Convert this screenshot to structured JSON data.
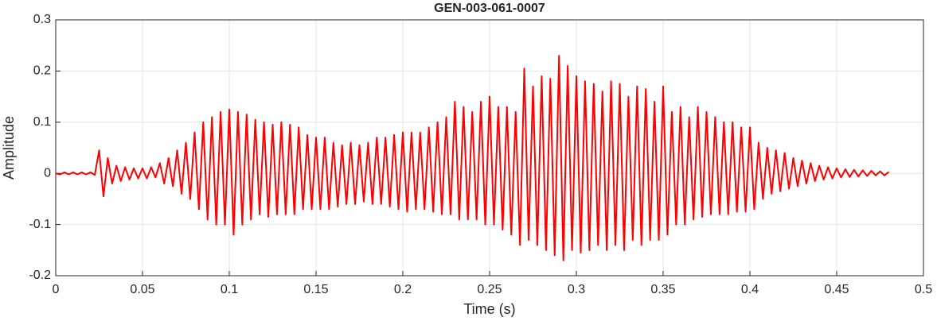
{
  "chart_data": {
    "type": "line",
    "title": "GEN-003-061-0007",
    "xlabel": "Time (s)",
    "ylabel": "Amplitude",
    "color": "#ff0000",
    "grid": true,
    "xlim": [
      0,
      0.5
    ],
    "ylim": [
      -0.2,
      0.3
    ],
    "xticks": [
      0,
      0.05,
      0.1,
      0.15,
      0.2,
      0.25,
      0.3,
      0.35,
      0.4,
      0.45,
      0.5
    ],
    "yticks": [
      -0.2,
      -0.1,
      0,
      0.1,
      0.2,
      0.3
    ],
    "x": [
      0,
      0.0025,
      0.005,
      0.0075,
      0.01,
      0.0125,
      0.015,
      0.0175,
      0.02,
      0.0225,
      0.025,
      0.0275,
      0.03,
      0.0325,
      0.035,
      0.0375,
      0.04,
      0.0425,
      0.045,
      0.0475,
      0.05,
      0.0525,
      0.055,
      0.0575,
      0.06,
      0.0625,
      0.065,
      0.0675,
      0.07,
      0.0725,
      0.075,
      0.0775,
      0.08,
      0.0825,
      0.085,
      0.0875,
      0.09,
      0.0925,
      0.095,
      0.0975,
      0.1,
      0.1025,
      0.105,
      0.1075,
      0.11,
      0.1125,
      0.115,
      0.1175,
      0.12,
      0.1225,
      0.125,
      0.1275,
      0.13,
      0.1325,
      0.135,
      0.1375,
      0.14,
      0.1425,
      0.145,
      0.1475,
      0.15,
      0.1525,
      0.155,
      0.1575,
      0.16,
      0.1625,
      0.165,
      0.1675,
      0.17,
      0.1725,
      0.175,
      0.1775,
      0.18,
      0.1825,
      0.185,
      0.1875,
      0.19,
      0.1925,
      0.195,
      0.1975,
      0.2,
      0.2025,
      0.205,
      0.2075,
      0.21,
      0.2125,
      0.215,
      0.2175,
      0.22,
      0.2225,
      0.225,
      0.2275,
      0.23,
      0.2325,
      0.235,
      0.2375,
      0.24,
      0.2425,
      0.245,
      0.2475,
      0.25,
      0.2525,
      0.255,
      0.2575,
      0.26,
      0.2625,
      0.265,
      0.2675,
      0.27,
      0.2725,
      0.275,
      0.2775,
      0.28,
      0.2825,
      0.285,
      0.2875,
      0.29,
      0.2925,
      0.295,
      0.2975,
      0.3,
      0.3025,
      0.305,
      0.3075,
      0.31,
      0.3125,
      0.315,
      0.3175,
      0.32,
      0.3225,
      0.325,
      0.3275,
      0.33,
      0.3325,
      0.335,
      0.3375,
      0.34,
      0.3425,
      0.345,
      0.3475,
      0.35,
      0.3525,
      0.355,
      0.3575,
      0.36,
      0.3625,
      0.365,
      0.3675,
      0.37,
      0.3725,
      0.375,
      0.3775,
      0.38,
      0.3825,
      0.385,
      0.3875,
      0.39,
      0.3925,
      0.395,
      0.3975,
      0.4,
      0.4025,
      0.405,
      0.4075,
      0.41,
      0.4125,
      0.415,
      0.4175,
      0.42,
      0.4225,
      0.425,
      0.4275,
      0.43,
      0.4325,
      0.435,
      0.4375,
      0.44,
      0.4425,
      0.445,
      0.4475,
      0.45,
      0.4525,
      0.455,
      0.4575,
      0.46,
      0.4625,
      0.465,
      0.4675,
      0.47,
      0.4725,
      0.475,
      0.4775,
      0.48
    ],
    "values": [
      0,
      -0.002,
      0.002,
      -0.002,
      0.002,
      -0.002,
      0.002,
      -0.002,
      0.002,
      -0.003,
      0.045,
      -0.045,
      0.03,
      -0.02,
      0.015,
      -0.015,
      0.012,
      -0.012,
      0.01,
      -0.01,
      0.01,
      -0.01,
      0.012,
      -0.008,
      0.02,
      -0.02,
      0.03,
      -0.025,
      0.045,
      -0.04,
      0.06,
      -0.05,
      0.08,
      -0.07,
      0.1,
      -0.09,
      0.11,
      -0.1,
      0.12,
      -0.1,
      0.125,
      -0.12,
      0.12,
      -0.1,
      0.115,
      -0.09,
      0.105,
      -0.08,
      0.1,
      -0.085,
      0.095,
      -0.08,
      0.1,
      -0.08,
      0.095,
      -0.08,
      0.09,
      -0.07,
      0.075,
      -0.07,
      0.07,
      -0.07,
      0.07,
      -0.07,
      0.06,
      -0.065,
      0.055,
      -0.06,
      0.06,
      -0.06,
      0.055,
      -0.055,
      0.06,
      -0.06,
      0.07,
      -0.06,
      0.07,
      -0.065,
      0.075,
      -0.07,
      0.08,
      -0.075,
      0.08,
      -0.07,
      0.08,
      -0.07,
      0.09,
      -0.075,
      0.1,
      -0.08,
      0.11,
      -0.08,
      0.14,
      -0.09,
      0.13,
      -0.09,
      0.12,
      -0.09,
      0.14,
      -0.1,
      0.15,
      -0.1,
      0.13,
      -0.11,
      0.13,
      -0.12,
      0.12,
      -0.14,
      0.205,
      -0.13,
      0.17,
      -0.14,
      0.19,
      -0.15,
      0.185,
      -0.16,
      0.23,
      -0.17,
      0.21,
      -0.15,
      0.19,
      -0.155,
      0.18,
      -0.15,
      0.175,
      -0.14,
      0.16,
      -0.15,
      0.18,
      -0.14,
      0.175,
      -0.15,
      0.15,
      -0.13,
      0.17,
      -0.14,
      0.165,
      -0.13,
      0.14,
      -0.13,
      0.17,
      -0.12,
      0.12,
      -0.1,
      0.13,
      -0.1,
      0.11,
      -0.09,
      0.13,
      -0.085,
      0.12,
      -0.08,
      0.11,
      -0.08,
      0.1,
      -0.08,
      0.1,
      -0.075,
      0.09,
      -0.075,
      0.09,
      -0.07,
      0.06,
      -0.05,
      0.05,
      -0.04,
      0.045,
      -0.035,
      0.04,
      -0.03,
      0.03,
      -0.025,
      0.025,
      -0.02,
      0.02,
      -0.015,
      0.015,
      -0.012,
      0.012,
      -0.01,
      0.01,
      -0.008,
      0.008,
      -0.007,
      0.007,
      -0.006,
      0.006,
      -0.005,
      0.005,
      -0.004,
      0.004,
      -0.004,
      0.003
    ]
  }
}
